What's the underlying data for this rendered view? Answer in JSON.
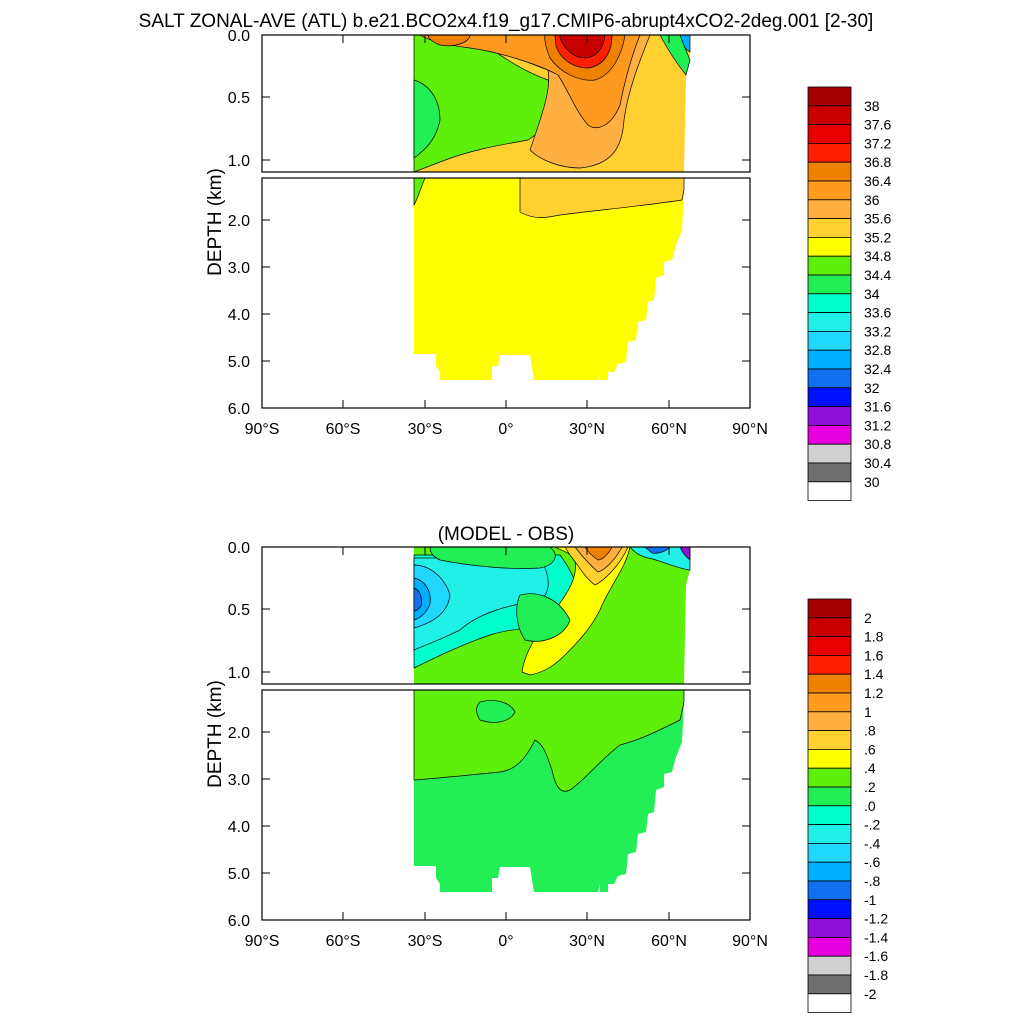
{
  "title": "SALT ZONAL-AVE (ATL) b.e21.BCO2x4.f19_g17.CMIP6-abrupt4xCO2-2deg.001 [2-30]",
  "chart_data": [
    {
      "type": "heatmap",
      "title": "",
      "ylabel": "DEPTH (km)",
      "xlabel": "",
      "x_ticks": [
        "90°S",
        "60°S",
        "30°S",
        "0°",
        "30°N",
        "60°N",
        "90°N"
      ],
      "y_ticks_upper": [
        "0.0",
        "0.5",
        "1.0"
      ],
      "y_ticks_lower": [
        "2.0",
        "3.0",
        "4.0",
        "5.0",
        "6.0"
      ],
      "xlim": [
        -90,
        90
      ],
      "ylim": [
        0,
        6
      ],
      "colorbar": {
        "labels": [
          "38",
          "37.6",
          "37.2",
          "36.8",
          "36.4",
          "36",
          "35.6",
          "35.2",
          "34.8",
          "34.4",
          "34",
          "33.6",
          "33.2",
          "32.8",
          "32.4",
          "32",
          "31.6",
          "31.2",
          "30.8",
          "30.4",
          "30"
        ],
        "colors": [
          "#a50000",
          "#c80000",
          "#e60000",
          "#ff2000",
          "#f08000",
          "#ff9a20",
          "#ffb040",
          "#ffd030",
          "#ffff00",
          "#5ef00a",
          "#22ee55",
          "#00ffcc",
          "#20f0e8",
          "#20d8ff",
          "#00b0ff",
          "#1070ee",
          "#0010ff",
          "#9010d8",
          "#e800e0",
          "#d0d0d0",
          "#707070",
          "#ffffff"
        ]
      }
    },
    {
      "type": "heatmap",
      "title": "(MODEL - OBS)",
      "ylabel": "DEPTH (km)",
      "xlabel": "",
      "x_ticks": [
        "90°S",
        "60°S",
        "30°S",
        "0°",
        "30°N",
        "60°N",
        "90°N"
      ],
      "y_ticks_upper": [
        "0.0",
        "0.5",
        "1.0"
      ],
      "y_ticks_lower": [
        "2.0",
        "3.0",
        "4.0",
        "5.0",
        "6.0"
      ],
      "xlim": [
        -90,
        90
      ],
      "ylim": [
        0,
        6
      ],
      "colorbar": {
        "labels": [
          "2",
          "1.8",
          "1.6",
          "1.4",
          "1.2",
          "1",
          ".8",
          ".6",
          ".4",
          ".2",
          ".0",
          "-.2",
          "-.4",
          "-.6",
          "-.8",
          "-1",
          "-1.2",
          "-1.4",
          "-1.6",
          "-1.8",
          "-2"
        ],
        "colors": [
          "#a50000",
          "#c80000",
          "#e60000",
          "#ff2000",
          "#f08000",
          "#ff9a20",
          "#ffb040",
          "#ffd030",
          "#ffff00",
          "#5ef00a",
          "#22ee55",
          "#00ffcc",
          "#20f0e8",
          "#20d8ff",
          "#00b0ff",
          "#1070ee",
          "#0010ff",
          "#9010d8",
          "#e800e0",
          "#d0d0d0",
          "#707070",
          "#ffffff"
        ]
      }
    }
  ]
}
